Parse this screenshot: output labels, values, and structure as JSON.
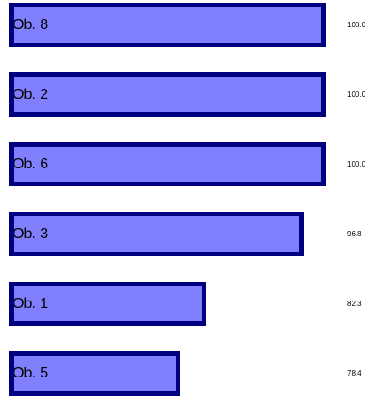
{
  "chart_data": {
    "type": "bar",
    "orientation": "horizontal",
    "categories": [
      "Ob. 8",
      "Ob. 2",
      "Ob. 6",
      "Ob. 3",
      "Ob. 1",
      "Ob. 5"
    ],
    "values": [
      100.0,
      100.0,
      100.0,
      96.8,
      82.3,
      78.4
    ],
    "value_labels": [
      "100.0",
      "100.0",
      "100.0",
      "96.8",
      "82.3",
      "78.4"
    ],
    "title": "",
    "xlabel": "",
    "ylabel": "",
    "xlim": [
      70,
      100
    ],
    "grid": false,
    "legend": "none",
    "colors": {
      "bar_fill": "#8080ff",
      "bar_border": "#000080",
      "text": "#000000"
    }
  }
}
